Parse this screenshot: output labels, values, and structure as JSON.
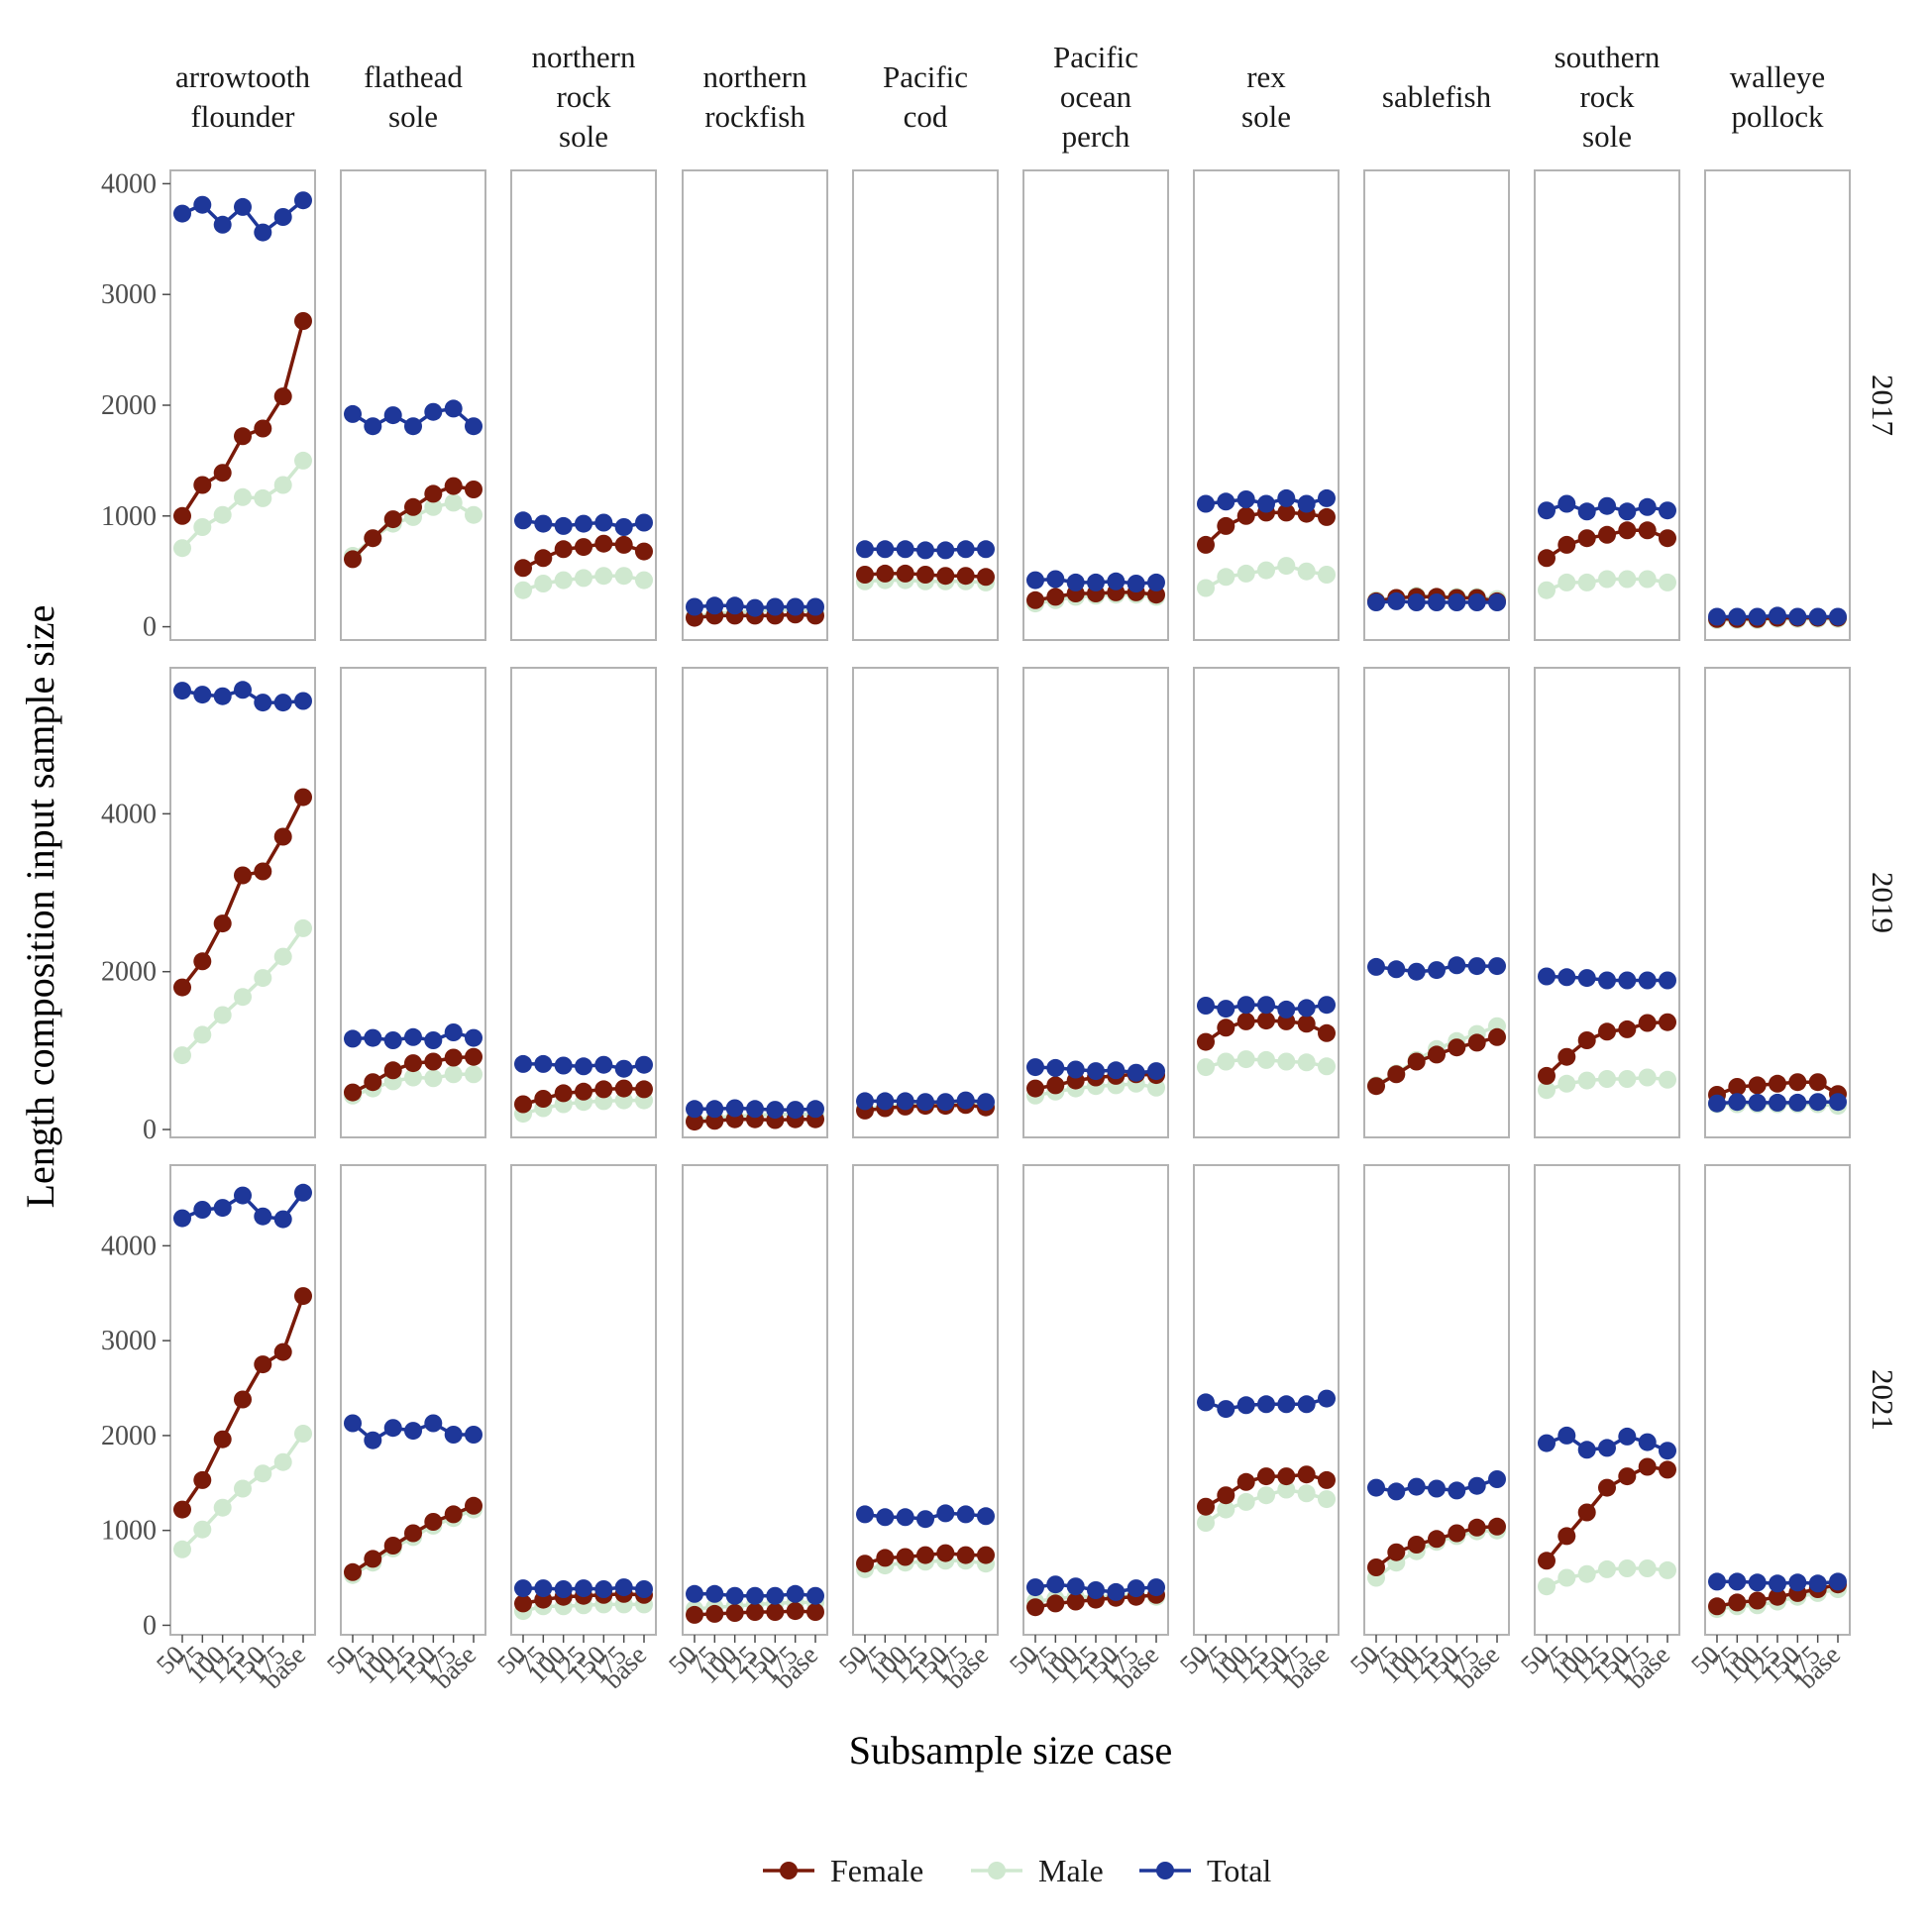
{
  "chart_data": {
    "type": "line",
    "xlabel": "Subsample size case",
    "ylabel": "Length composition input sample size",
    "x_categories": [
      "50",
      "75",
      "100",
      "125",
      "150",
      "175",
      "base"
    ],
    "facet_columns": [
      "arrowtooth flounder",
      "flathead sole",
      "northern rock sole",
      "northern rockfish",
      "Pacific cod",
      "Pacific ocean perch",
      "rex sole",
      "sablefish",
      "southern rock sole",
      "walleye pollock"
    ],
    "facet_rows": [
      "2017",
      "2019",
      "2021"
    ],
    "rows": [
      {
        "year": "2017",
        "ylim": [
          -120,
          4120
        ],
        "yticks": [
          0,
          1000,
          2000,
          3000,
          4000
        ],
        "panels": [
          {
            "species": "arrowtooth flounder",
            "Female": [
              1000,
              1280,
              1390,
              1720,
              1790,
              2080,
              2760
            ],
            "Male": [
              710,
              900,
              1010,
              1170,
              1160,
              1280,
              1500
            ],
            "Total": [
              3730,
              3810,
              3630,
              3790,
              3560,
              3700,
              3850
            ]
          },
          {
            "species": "flathead sole",
            "Female": [
              610,
              800,
              970,
              1080,
              1200,
              1270,
              1240
            ],
            "Male": [
              640,
              800,
              930,
              990,
              1080,
              1120,
              1010
            ],
            "Total": [
              1920,
              1810,
              1910,
              1810,
              1940,
              1970,
              1810
            ]
          },
          {
            "species": "northern rock sole",
            "Female": [
              530,
              620,
              700,
              720,
              750,
              740,
              680
            ],
            "Male": [
              330,
              390,
              420,
              440,
              460,
              460,
              420
            ],
            "Total": [
              960,
              930,
              910,
              930,
              940,
              900,
              940
            ]
          },
          {
            "species": "northern rockfish",
            "Female": [
              80,
              100,
              100,
              100,
              100,
              110,
              100
            ],
            "Male": [
              90,
              120,
              130,
              140,
              150,
              150,
              140
            ],
            "Total": [
              180,
              190,
              190,
              170,
              180,
              180,
              180
            ]
          },
          {
            "species": "Pacific cod",
            "Female": [
              470,
              480,
              480,
              470,
              460,
              460,
              450
            ],
            "Male": [
              410,
              420,
              420,
              410,
              410,
              410,
              400
            ],
            "Total": [
              700,
              700,
              700,
              690,
              690,
              700,
              700
            ]
          },
          {
            "species": "Pacific ocean perch",
            "Female": [
              240,
              270,
              300,
              300,
              310,
              310,
              290
            ],
            "Male": [
              210,
              240,
              270,
              280,
              290,
              290,
              270
            ],
            "Total": [
              420,
              430,
              400,
              400,
              410,
              390,
              400
            ]
          },
          {
            "species": "rex sole",
            "Female": [
              740,
              910,
              1000,
              1030,
              1030,
              1020,
              990
            ],
            "Male": [
              350,
              450,
              480,
              510,
              550,
              500,
              470
            ],
            "Total": [
              1110,
              1130,
              1150,
              1110,
              1160,
              1110,
              1160
            ]
          },
          {
            "species": "sablefish",
            "Female": [
              230,
              260,
              270,
              270,
              260,
              260,
              230
            ],
            "Male": [
              240,
              260,
              280,
              270,
              270,
              270,
              250
            ],
            "Total": [
              220,
              230,
              220,
              220,
              220,
              220,
              220
            ]
          },
          {
            "species": "southern rock sole",
            "Female": [
              620,
              740,
              800,
              830,
              870,
              870,
              800
            ],
            "Male": [
              330,
              400,
              400,
              430,
              430,
              430,
              400
            ],
            "Total": [
              1050,
              1110,
              1040,
              1090,
              1040,
              1080,
              1050
            ]
          },
          {
            "species": "walleye pollock",
            "Female": [
              70,
              70,
              70,
              80,
              80,
              80,
              80
            ],
            "Male": [
              60,
              60,
              60,
              70,
              70,
              70,
              70
            ],
            "Total": [
              90,
              90,
              90,
              100,
              90,
              90,
              90
            ]
          }
        ]
      },
      {
        "year": "2019",
        "ylim": [
          -100,
          5850
        ],
        "yticks": [
          0,
          2000,
          4000
        ],
        "panels": [
          {
            "species": "arrowtooth flounder",
            "Female": [
              1800,
              2130,
              2610,
              3220,
              3270,
              3710,
              4210
            ],
            "Male": [
              940,
              1200,
              1450,
              1680,
              1920,
              2190,
              2550
            ],
            "Total": [
              5560,
              5510,
              5490,
              5570,
              5410,
              5410,
              5430
            ]
          },
          {
            "species": "flathead sole",
            "Female": [
              470,
              600,
              750,
              840,
              860,
              910,
              920
            ],
            "Male": [
              430,
              520,
              610,
              660,
              650,
              700,
              700
            ],
            "Total": [
              1150,
              1160,
              1130,
              1170,
              1130,
              1230,
              1160
            ]
          },
          {
            "species": "northern rock sole",
            "Female": [
              320,
              390,
              460,
              480,
              510,
              520,
              510
            ],
            "Male": [
              200,
              270,
              320,
              350,
              360,
              370,
              370
            ],
            "Total": [
              830,
              830,
              810,
              800,
              820,
              770,
              820
            ]
          },
          {
            "species": "northern rockfish",
            "Female": [
              100,
              110,
              130,
              130,
              120,
              130,
              130
            ],
            "Male": [
              120,
              150,
              170,
              180,
              190,
              190,
              190
            ],
            "Total": [
              260,
              260,
              270,
              260,
              250,
              250,
              260
            ]
          },
          {
            "species": "Pacific cod",
            "Female": [
              240,
              270,
              290,
              300,
              300,
              310,
              280
            ],
            "Male": [
              260,
              290,
              310,
              320,
              320,
              330,
              300
            ],
            "Total": [
              360,
              360,
              360,
              350,
              350,
              370,
              350
            ]
          },
          {
            "species": "Pacific ocean perch",
            "Female": [
              520,
              560,
              620,
              660,
              680,
              700,
              690
            ],
            "Male": [
              430,
              480,
              520,
              550,
              560,
              580,
              530
            ],
            "Total": [
              790,
              780,
              760,
              740,
              750,
              720,
              740
            ]
          },
          {
            "species": "rex sole",
            "Female": [
              1110,
              1290,
              1370,
              1380,
              1370,
              1340,
              1220
            ],
            "Male": [
              790,
              860,
              890,
              880,
              860,
              850,
              800
            ],
            "Total": [
              1570,
              1530,
              1580,
              1580,
              1520,
              1540,
              1580
            ]
          },
          {
            "species": "sablefish",
            "Female": [
              550,
              700,
              860,
              950,
              1040,
              1100,
              1170
            ],
            "Male": [
              560,
              710,
              880,
              1020,
              1120,
              1210,
              1310
            ],
            "Total": [
              2060,
              2030,
              2000,
              2020,
              2080,
              2070,
              2070
            ]
          },
          {
            "species": "southern rock sole",
            "Female": [
              680,
              920,
              1130,
              1240,
              1270,
              1350,
              1360
            ],
            "Male": [
              500,
              580,
              620,
              640,
              640,
              660,
              630
            ],
            "Total": [
              1940,
              1930,
              1920,
              1890,
              1890,
              1890,
              1890
            ]
          },
          {
            "species": "walleye pollock",
            "Female": [
              440,
              540,
              560,
              580,
              600,
              600,
              450
            ],
            "Male": [
              320,
              320,
              320,
              320,
              320,
              320,
              300
            ],
            "Total": [
              330,
              350,
              340,
              340,
              340,
              350,
              350
            ]
          }
        ]
      },
      {
        "year": "2021",
        "ylim": [
          -100,
          4850
        ],
        "yticks": [
          0,
          1000,
          2000,
          3000,
          4000
        ],
        "panels": [
          {
            "species": "arrowtooth flounder",
            "Female": [
              1220,
              1530,
              1960,
              2380,
              2750,
              2880,
              3470
            ],
            "Male": [
              800,
              1010,
              1240,
              1440,
              1600,
              1720,
              2020
            ],
            "Total": [
              4290,
              4380,
              4400,
              4530,
              4310,
              4280,
              4560
            ]
          },
          {
            "species": "flathead sole",
            "Female": [
              560,
              700,
              840,
              970,
              1090,
              1170,
              1260
            ],
            "Male": [
              530,
              660,
              810,
              930,
              1050,
              1130,
              1220
            ],
            "Total": [
              2130,
              1950,
              2080,
              2050,
              2130,
              2010,
              2010
            ]
          },
          {
            "species": "northern rock sole",
            "Female": [
              230,
              270,
              300,
              310,
              320,
              330,
              320
            ],
            "Male": [
              150,
              200,
              200,
              210,
              220,
              220,
              220
            ],
            "Total": [
              390,
              390,
              380,
              390,
              380,
              400,
              380
            ]
          },
          {
            "species": "northern rockfish",
            "Female": [
              110,
              120,
              130,
              140,
              140,
              150,
              140
            ],
            "Male": [
              170,
              190,
              200,
              220,
              230,
              240,
              240
            ],
            "Total": [
              330,
              330,
              310,
              310,
              310,
              330,
              310
            ]
          },
          {
            "species": "Pacific cod",
            "Female": [
              650,
              710,
              720,
              740,
              760,
              740,
              740
            ],
            "Male": [
              590,
              630,
              660,
              670,
              680,
              680,
              650
            ],
            "Total": [
              1170,
              1140,
              1140,
              1120,
              1180,
              1170,
              1150
            ]
          },
          {
            "species": "Pacific ocean perch",
            "Female": [
              190,
              230,
              250,
              270,
              290,
              300,
              320
            ],
            "Male": [
              250,
              280,
              300,
              300,
              310,
              320,
              300
            ],
            "Total": [
              400,
              430,
              410,
              370,
              350,
              390,
              400
            ]
          },
          {
            "species": "rex sole",
            "Female": [
              1250,
              1370,
              1510,
              1570,
              1570,
              1590,
              1530
            ],
            "Male": [
              1080,
              1220,
              1300,
              1370,
              1430,
              1390,
              1330
            ],
            "Total": [
              2350,
              2280,
              2320,
              2330,
              2330,
              2330,
              2390
            ]
          },
          {
            "species": "sablefish",
            "Female": [
              610,
              770,
              850,
              910,
              970,
              1030,
              1040
            ],
            "Male": [
              500,
              660,
              780,
              880,
              940,
              990,
              1000
            ],
            "Total": [
              1450,
              1410,
              1460,
              1440,
              1420,
              1470,
              1540
            ]
          },
          {
            "species": "southern rock sole",
            "Female": [
              680,
              940,
              1190,
              1450,
              1570,
              1670,
              1640
            ],
            "Male": [
              410,
              500,
              540,
              590,
              600,
              600,
              580
            ],
            "Total": [
              1920,
              2000,
              1850,
              1870,
              1990,
              1930,
              1840
            ]
          },
          {
            "species": "walleye pollock",
            "Female": [
              200,
              240,
              260,
              300,
              340,
              380,
              430
            ],
            "Male": [
              170,
              200,
              210,
              250,
              300,
              340,
              380
            ],
            "Total": [
              460,
              460,
              450,
              440,
              450,
              440,
              460
            ]
          }
        ]
      }
    ],
    "series": [
      {
        "name": "Female",
        "color": "#7a1a09"
      },
      {
        "name": "Male",
        "color": "#cfe8cf"
      },
      {
        "name": "Total",
        "color": "#1e3799"
      }
    ],
    "legend_position": "bottom",
    "grid": false
  }
}
